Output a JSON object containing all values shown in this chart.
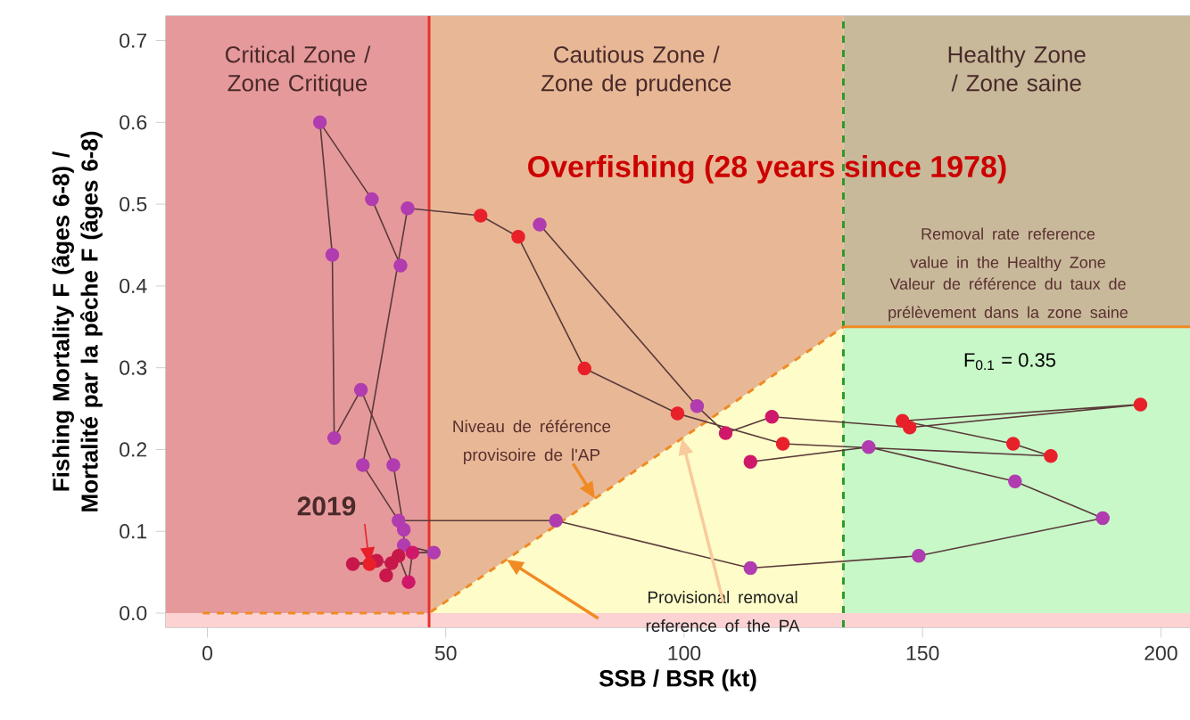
{
  "chart_data": {
    "type": "line",
    "xlabel": "SSB / BSR (kt)",
    "ylabel": "Fishing Mortality F (âges 6-8) / Mortalité par la pêche F (âges 6-8)",
    "xlim": [
      -8.7,
      206.1
    ],
    "ylim": [
      -0.0174,
      0.73
    ],
    "xticks": [
      0,
      50,
      100,
      150,
      200
    ],
    "yticks": [
      {
        "value": 0,
        "label": "0.0"
      },
      0.1,
      0.2,
      0.3,
      0.4,
      0.5,
      0.6,
      0.7
    ],
    "grid": false,
    "bands": [
      {
        "axis": "y",
        "from": -0.0174,
        "to": 0,
        "color": "#fcd2d2"
      },
      {
        "axis": "x",
        "from": -8.7,
        "to": 46.5,
        "label": "Critical Zone / Zone Critique",
        "color": "#e6999b"
      },
      {
        "axis": "x",
        "from": 46.5,
        "to": 133.4,
        "label": "Cautious Zone / Zone de prudence",
        "color": "#e8b896"
      },
      {
        "axis": "x",
        "from": 133.4,
        "to": 206.1,
        "label": "Healthy Zone / Zone saine",
        "color": "#c8b99a"
      }
    ],
    "ref_lines": [
      {
        "axis": "x",
        "value": 46.5,
        "color": "#e8302a",
        "line_style": "solid"
      },
      {
        "axis": "x",
        "value": 133.4,
        "color": "#2a9a2a",
        "line_style": "dashed"
      }
    ],
    "series": [
      {
        "type": "area",
        "color": "#fefcc8",
        "x": [
          46.5,
          133.4
        ],
        "values": [
          0,
          0.35
        ]
      },
      {
        "type": "area",
        "color": "#c8f8c8",
        "x": [
          133.4,
          206.1
        ],
        "values": [
          0.35,
          0.35
        ]
      },
      {
        "type": "line",
        "color": "#f08a24",
        "line_style": "dashed",
        "x": [
          -1,
          46.5,
          133.4
        ],
        "values": [
          0,
          0,
          0.35
        ]
      },
      {
        "type": "line",
        "color": "#f08a24",
        "line_style": "solid",
        "x": [
          133.4,
          206.1
        ],
        "values": [
          0.35,
          0.35
        ]
      },
      {
        "color": "#5a3a3a",
        "marker": "circle",
        "line_style": "solid",
        "x": [
          69.7,
          102.7,
          108.7,
          118.4,
          147.3,
          195.7,
          145.8,
          169.0,
          176.9,
          120.7,
          98.6,
          79.1,
          65.2,
          57.3,
          42.0,
          32.6,
          40.1,
          73.1,
          113.9,
          149.2,
          187.8,
          169.4,
          138.7,
          113.9,
          null,
          40.5,
          34.5,
          23.6,
          26.2,
          26.6,
          32.2,
          39.0,
          41.2,
          41.2,
          47.5,
          43.0,
          42.2,
          40.1,
          37.5,
          38.6,
          35.5,
          30.5,
          34.0
        ],
        "values": [
          0.475,
          0.253,
          0.22,
          0.24,
          0.227,
          0.255,
          0.235,
          0.207,
          0.192,
          0.207,
          0.244,
          0.299,
          0.46,
          0.486,
          0.495,
          0.181,
          0.113,
          0.113,
          0.055,
          0.07,
          0.116,
          0.161,
          0.203,
          0.185,
          null,
          0.425,
          0.506,
          0.6,
          0.438,
          0.214,
          0.273,
          0.181,
          0.102,
          0.083,
          0.074,
          0.074,
          0.038,
          0.07,
          0.046,
          0.061,
          0.064,
          0.06,
          0.06
        ],
        "colors": [
          "#b03cb0",
          "#b03cb0",
          "#d0186a",
          "#d0186a",
          "#e8202a",
          "#e8202a",
          "#e8202a",
          "#e8202a",
          "#e8202a",
          "#e8202a",
          "#e8202a",
          "#e8202a",
          "#e8202a",
          "#e8202a",
          "#b03cb0",
          "#b03cb0",
          "#b03cb0",
          "#b03cb0",
          "#b03cb0",
          "#b03cb0",
          "#b03cb0",
          "#b03cb0",
          "#b03cb0",
          "#d0186a",
          null,
          "#b03cb0",
          "#b03cb0",
          "#b03cb0",
          "#b03cb0",
          "#b03cb0",
          "#b03cb0",
          "#b03cb0",
          "#b03cb0",
          "#b03cb0",
          "#b03cb0",
          "#d0186a",
          "#d0186a",
          "#c8184a",
          "#c8184a",
          "#c8184a",
          "#c8184a",
          "#c8184a",
          "#e8202a"
        ]
      }
    ],
    "annotations": [
      "Overfishing (28 years since 1978)",
      {
        "text": "Niveau de référence provisoire de l'AP",
        "x": 81.3,
        "y": 0.14
      },
      {
        "text": "Provisional removal reference of the PA",
        "x": 99.5,
        "y": 0.214
      },
      {
        "text": "2019",
        "x": 34,
        "y": 0.06
      },
      "Removal rate reference value in the Healthy Zone",
      "Valeur de référence du taux de prélèvement dans la zone saine",
      {
        "text": "F$_{0.1}$ = 0.35",
        "x": 168.3,
        "y": 0.35
      }
    ]
  }
}
